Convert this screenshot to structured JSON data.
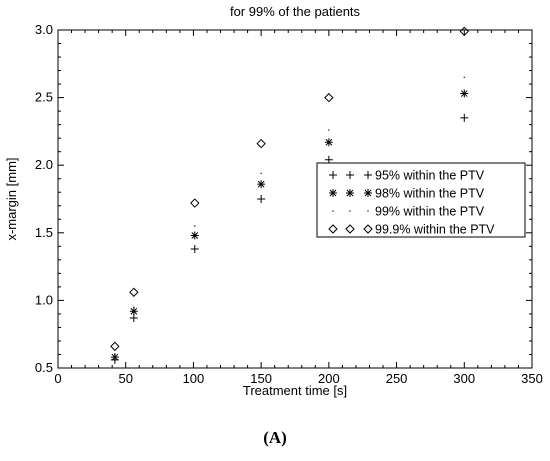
{
  "chart_data": {
    "type": "scatter",
    "title": "for 99% of the patients",
    "xlabel": "Treatment time [s]",
    "ylabel": "x-margin [mm]",
    "xlim": [
      0,
      350
    ],
    "ylim": [
      0.5,
      3.0
    ],
    "xticks": [
      0,
      50,
      100,
      150,
      200,
      250,
      300,
      350
    ],
    "yticks": [
      0.5,
      1.0,
      1.5,
      2.0,
      2.5,
      3.0
    ],
    "xtick_labels": [
      "0",
      "50",
      "100",
      "150",
      "200",
      "250",
      "300",
      "350"
    ],
    "ytick_labels": [
      "0.5",
      "1.0",
      "1.5",
      "2.0",
      "2.5",
      "3.0"
    ],
    "grid": false,
    "legend_position": "right",
    "series": [
      {
        "name": "95% within the PTV",
        "marker": "plus",
        "x": [
          42,
          56,
          101,
          150,
          200,
          300
        ],
        "y": [
          0.56,
          0.87,
          1.38,
          1.75,
          2.04,
          2.35
        ]
      },
      {
        "name": "98% within the PTV",
        "marker": "star",
        "x": [
          42,
          56,
          101,
          150,
          200,
          300
        ],
        "y": [
          0.58,
          0.92,
          1.48,
          1.86,
          2.17,
          2.53
        ]
      },
      {
        "name": "99% within the PTV",
        "marker": "dot",
        "x": [
          42,
          56,
          101,
          150,
          200,
          300
        ],
        "y": [
          0.6,
          0.95,
          1.55,
          1.94,
          2.26,
          2.65
        ]
      },
      {
        "name": "99.9% within the PTV",
        "marker": "diamond",
        "x": [
          42,
          56,
          101,
          150,
          200,
          300
        ],
        "y": [
          0.66,
          1.06,
          1.72,
          2.16,
          2.5,
          2.99
        ]
      }
    ]
  },
  "panel_label": "(A)"
}
